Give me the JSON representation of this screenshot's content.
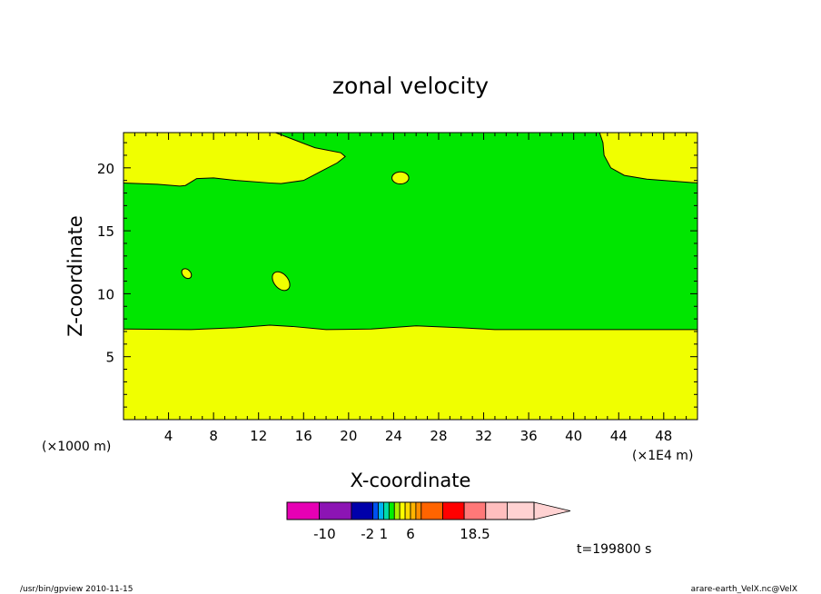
{
  "chart_data": {
    "type": "heatmap",
    "title": "zonal velocity",
    "xlabel": "X-coordinate",
    "ylabel": "Z-coordinate",
    "x_unit_label": "(×1E4 m)",
    "y_unit_label": "(×1000 m)",
    "xlim": [
      0,
      51
    ],
    "ylim": [
      0,
      22.8
    ],
    "x_ticks": [
      4,
      8,
      12,
      16,
      20,
      24,
      28,
      32,
      36,
      40,
      44,
      48
    ],
    "y_ticks": [
      5,
      10,
      15,
      20
    ],
    "regions": [
      {
        "color": "#f0ff00",
        "description_value": "0..1"
      },
      {
        "color": "#00e600",
        "description_value": "-1..0"
      }
    ],
    "green_band": {
      "lower_boundary": [
        [
          0,
          7.2
        ],
        [
          6,
          7.15
        ],
        [
          10,
          7.3
        ],
        [
          13,
          7.5
        ],
        [
          15,
          7.4
        ],
        [
          18,
          7.15
        ],
        [
          22,
          7.2
        ],
        [
          26,
          7.45
        ],
        [
          30,
          7.3
        ],
        [
          33,
          7.15
        ],
        [
          40,
          7.15
        ],
        [
          45,
          7.15
        ],
        [
          51,
          7.15
        ]
      ],
      "upper_boundary": [
        [
          0,
          18.8
        ],
        [
          3,
          18.7
        ],
        [
          5,
          18.55
        ],
        [
          5.5,
          18.6
        ],
        [
          6.5,
          19.15
        ],
        [
          8,
          19.2
        ],
        [
          10,
          19.0
        ],
        [
          13,
          18.8
        ],
        [
          14,
          18.75
        ],
        [
          16,
          19.0
        ],
        [
          17.5,
          19.7
        ],
        [
          19,
          20.4
        ],
        [
          19.7,
          20.9
        ],
        [
          19.3,
          21.2
        ],
        [
          17,
          21.6
        ],
        [
          13.5,
          22.8
        ],
        [
          42.3,
          22.8
        ],
        [
          42.6,
          22.0
        ],
        [
          42.7,
          21.0
        ],
        [
          43.3,
          20.0
        ],
        [
          44.5,
          19.4
        ],
        [
          46.5,
          19.1
        ],
        [
          51,
          18.8
        ]
      ]
    },
    "islands": [
      {
        "cx": 24.6,
        "cy": 19.2,
        "rx": 0.75,
        "ry": 0.3,
        "angle": 0
      },
      {
        "cx": 5.6,
        "cy": 11.6,
        "rx": 0.5,
        "ry": 0.2,
        "angle": 45
      },
      {
        "cx": 14.0,
        "cy": 11.0,
        "rx": 0.95,
        "ry": 0.35,
        "angle": 50
      }
    ],
    "colorbar": {
      "colors": [
        "#e600b4",
        "#8c14b4",
        "#0000aa",
        "#0050f0",
        "#00b4f0",
        "#00dcaa",
        "#00f000",
        "#aaf000",
        "#ffff00",
        "#ffdc00",
        "#ffb400",
        "#ff8c00",
        "#ff6400",
        "#ff0000",
        "#ff7878",
        "#ffbebe",
        "#ffd2d2"
      ],
      "widths": [
        3,
        3,
        2,
        0.5,
        0.5,
        0.5,
        0.5,
        0.5,
        0.5,
        0.5,
        0.5,
        0.5,
        2,
        2,
        2,
        2,
        2.5
      ],
      "labels": [
        {
          "text": "-10",
          "at": 3.5
        },
        {
          "text": "-2",
          "at": 7.5
        },
        {
          "text": "1",
          "at": 9
        },
        {
          "text": "6",
          "at": 11.5
        },
        {
          "text": "18.5",
          "at": 17.5
        }
      ]
    },
    "time_label": "t=199800 s",
    "footer_left": "/usr/bin/gpview   2010-11-15",
    "footer_right": "arare-earth_VelX.nc@VelX"
  }
}
